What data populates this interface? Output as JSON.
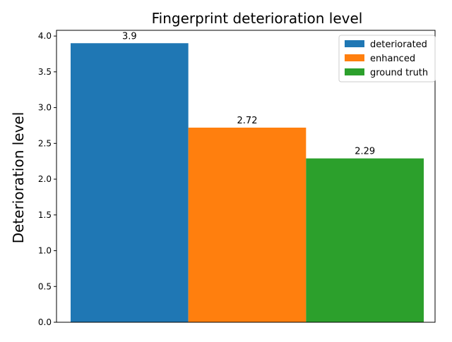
{
  "chart_data": {
    "type": "bar",
    "title": "Fingerprint deterioration level",
    "xlabel": "",
    "ylabel": "Deterioration level",
    "ylim": [
      0,
      4.0
    ],
    "yticks": [
      "0.0",
      "0.5",
      "1.0",
      "1.5",
      "2.0",
      "2.5",
      "3.0",
      "3.5",
      "4.0"
    ],
    "grid": false,
    "legend_position": "top-right",
    "series": [
      {
        "name": "deteriorated",
        "value": 3.9,
        "label": "3.9",
        "color": "#1f77b4"
      },
      {
        "name": "enhanced",
        "value": 2.72,
        "label": "2.72",
        "color": "#ff7f0e"
      },
      {
        "name": "ground truth",
        "value": 2.29,
        "label": "2.29",
        "color": "#2ca02c"
      }
    ]
  }
}
